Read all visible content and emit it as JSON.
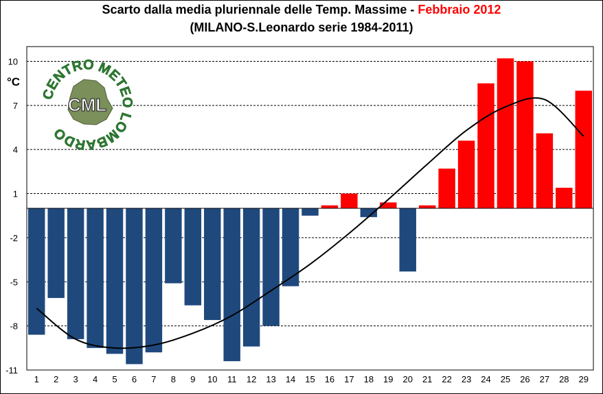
{
  "header": {
    "title_main": "Scarto dalla media pluriennale  delle Temp. Massime - ",
    "title_highlight": "Febbraio 2012",
    "subtitle": "(MILANO-S.Leonardo serie 1984-2011)"
  },
  "logo": {
    "text_ring": "CENTRO METEO LOMBARDO",
    "text_center": "CML"
  },
  "colors": {
    "positive": "#ff0000",
    "negative": "#1f497d",
    "trend": "#000000",
    "grid": "#000000",
    "logo_green": "#2e7d32"
  },
  "chart_data": {
    "type": "bar",
    "title": "Scarto dalla media pluriennale  delle Temp. Massime - Febbraio 2012",
    "subtitle": "(MILANO-S.Leonardo serie 1984-2011)",
    "xlabel": "",
    "ylabel": "°C",
    "ylim": [
      -11,
      11
    ],
    "yticks": [
      10,
      7,
      4,
      1,
      -2,
      -5,
      -8,
      -11
    ],
    "grid": true,
    "categories": [
      "1",
      "2",
      "3",
      "4",
      "5",
      "6",
      "7",
      "8",
      "9",
      "10",
      "11",
      "12",
      "13",
      "14",
      "15",
      "16",
      "17",
      "18",
      "19",
      "20",
      "21",
      "22",
      "23",
      "24",
      "25",
      "26",
      "27",
      "28",
      "29"
    ],
    "series": [
      {
        "values": [
          -8.6,
          -6.1,
          -8.9,
          -9.5,
          -9.9,
          -10.6,
          -9.8,
          -5.1,
          -6.6,
          -7.6,
          -10.4,
          -9.4,
          -8.0,
          -5.3,
          -0.5,
          0.2,
          1.0,
          -0.6,
          0.4,
          -4.3,
          0.2,
          2.7,
          4.6,
          8.5,
          10.2,
          10.0,
          5.1,
          1.4,
          8.0
        ]
      }
    ],
    "trend": {
      "type": "polynomial",
      "x": [
        1,
        3,
        5,
        7,
        9,
        11,
        13,
        15,
        17,
        19,
        21,
        23,
        25,
        27,
        29
      ],
      "y": [
        -6.8,
        -8.9,
        -9.5,
        -9.3,
        -8.5,
        -7.3,
        -5.6,
        -3.8,
        -1.7,
        0.6,
        3.0,
        5.3,
        6.9,
        7.4,
        4.9
      ]
    }
  }
}
